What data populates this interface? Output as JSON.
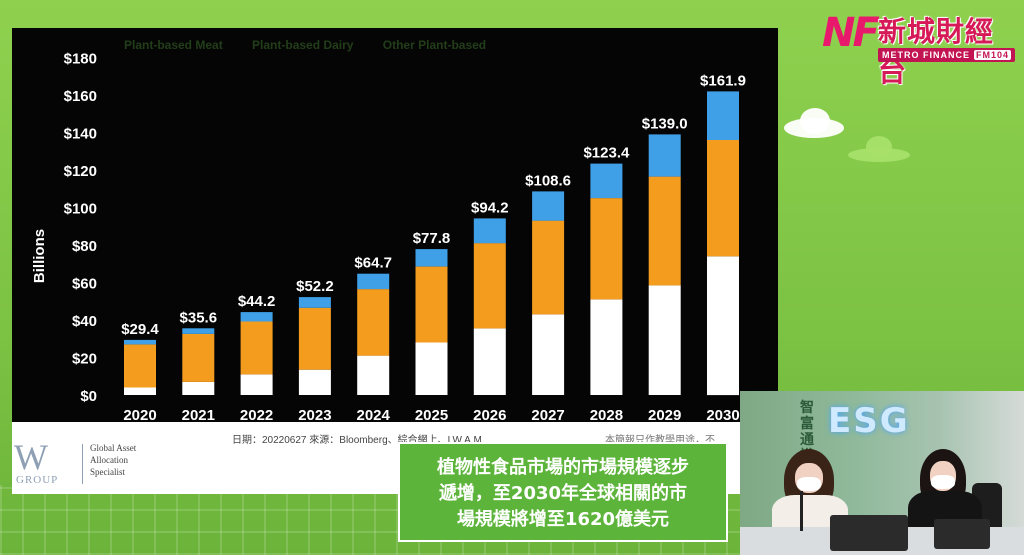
{
  "broadcast": {
    "logo_initials": "NF",
    "logo_chinese": "新城財經台",
    "logo_english": "METRO FINANCE",
    "logo_fm": "FM104",
    "caption": [
      "植物性食品市場的市場規模逐步",
      "遞增，至2030年全球相關的市",
      "場規模將增至1620億美元"
    ],
    "set_sign": "ESG",
    "set_sign_vertical": "智富通識"
  },
  "slide": {
    "legend": [
      "Plant-based Meat",
      "Plant-based Dairy",
      "Other Plant-based"
    ],
    "footer_source": "日期：20220627  來源：Bloomberg、綜合網上、LW A.M.",
    "footer_disclaimer": "本簡報只作教學用途，不",
    "company_mark": "W",
    "company_group": "GROUP",
    "company_tagline": [
      "Global Asset",
      "Allocation",
      "Specialist"
    ]
  },
  "colors": {
    "segment_bottom": "#ffffff",
    "segment_middle": "#f39c1e",
    "segment_top": "#3fa0e8",
    "caption_green": "#5cb43a",
    "brand_pink": "#e8196c",
    "brand_blue": "#1f9be0"
  },
  "chart_data": {
    "type": "bar",
    "stacked": true,
    "title": "",
    "xlabel": "",
    "ylabel": "Billions",
    "ylim": [
      0,
      180
    ],
    "ytick_labels": [
      "$0",
      "$20",
      "$40",
      "$60",
      "$80",
      "$100",
      "$120",
      "$140",
      "$160",
      "$180"
    ],
    "categories": [
      "2020",
      "2021",
      "2022",
      "2023",
      "2024",
      "2025",
      "2026",
      "2027",
      "2028",
      "2029",
      "2030"
    ],
    "totals": [
      29.4,
      35.6,
      44.2,
      52.2,
      64.7,
      77.8,
      94.2,
      108.6,
      123.4,
      139.0,
      161.9
    ],
    "total_labels": [
      "$29.4",
      "$35.6",
      "$44.2",
      "$52.2",
      "$64.7",
      "$77.8",
      "$94.2",
      "$108.6",
      "$123.4",
      "$139.0",
      "$161.9"
    ],
    "series": [
      {
        "name": "Plant-based Meat",
        "values": [
          4,
          7,
          11,
          13.5,
          21,
          28,
          35.5,
          43,
          51,
          58.5,
          74
        ]
      },
      {
        "name": "Plant-based Dairy",
        "values": [
          23,
          25.6,
          28.2,
          33,
          35.5,
          40.5,
          45.5,
          50,
          54,
          58,
          62
        ]
      },
      {
        "name": "Other Plant-based",
        "values": [
          2.4,
          3,
          5,
          5.7,
          8.2,
          9.3,
          13.2,
          15.6,
          18.4,
          22.5,
          25.9
        ]
      }
    ]
  }
}
